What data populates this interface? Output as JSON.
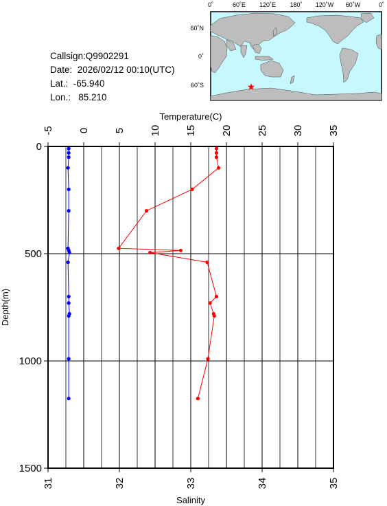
{
  "info": {
    "callsign": "Callsign:Q9902291",
    "date": "Date:  2026/02/12 00:10(UTC)",
    "lat": "Lat.:  -65.940",
    "lon": "Lon.:   85.210"
  },
  "map": {
    "top_labels": [
      "0˚",
      "60˚E",
      "120˚E",
      "180˚",
      "120˚W",
      "60˚W",
      "0˚"
    ],
    "left_labels": [
      "60˚N",
      "0˚",
      "60˚S"
    ],
    "ocean_color": "#c8f8ff",
    "land_color": "#bdbdbd",
    "marker_color": "#ff0000",
    "marker_icon": "star-icon"
  },
  "chart_data": {
    "type": "line",
    "ylabel": "Depth(m)",
    "ylim": [
      0,
      1500
    ],
    "y_inverted": true,
    "y_ticks": [
      "0",
      "500",
      "1000",
      "1500"
    ],
    "top_axis": {
      "label": "Temperature(C)",
      "range": [
        -5,
        35
      ],
      "ticks": [
        "-5",
        "0",
        "5",
        "10",
        "15",
        "20",
        "25",
        "30",
        "35"
      ]
    },
    "bottom_axis": {
      "label": "Salinity",
      "range": [
        31,
        35
      ],
      "ticks": [
        "31",
        "32",
        "33",
        "34",
        "35"
      ]
    },
    "grid": true,
    "series": [
      {
        "color": "#ff0000",
        "axis": "top",
        "points": [
          [
            18.6,
            10
          ],
          [
            18.6,
            30
          ],
          [
            18.6,
            50
          ],
          [
            18.9,
            100
          ],
          [
            15.2,
            200
          ],
          [
            8.8,
            300
          ],
          [
            4.9,
            475
          ],
          [
            13.6,
            485
          ],
          [
            9.3,
            495
          ],
          [
            17.3,
            540
          ],
          [
            18.6,
            700
          ],
          [
            17.7,
            730
          ],
          [
            18.2,
            780
          ],
          [
            18.3,
            790
          ],
          [
            17.4,
            990
          ],
          [
            16.0,
            1175
          ]
        ]
      },
      {
        "color": "#0000ff",
        "axis": "bottom",
        "points": [
          [
            31.29,
            10
          ],
          [
            31.29,
            30
          ],
          [
            31.29,
            50
          ],
          [
            31.28,
            100
          ],
          [
            31.29,
            200
          ],
          [
            31.29,
            300
          ],
          [
            31.28,
            475
          ],
          [
            31.29,
            485
          ],
          [
            31.3,
            495
          ],
          [
            31.28,
            540
          ],
          [
            31.29,
            700
          ],
          [
            31.29,
            730
          ],
          [
            31.3,
            780
          ],
          [
            31.29,
            790
          ],
          [
            31.29,
            990
          ],
          [
            31.29,
            1175
          ]
        ]
      }
    ]
  }
}
